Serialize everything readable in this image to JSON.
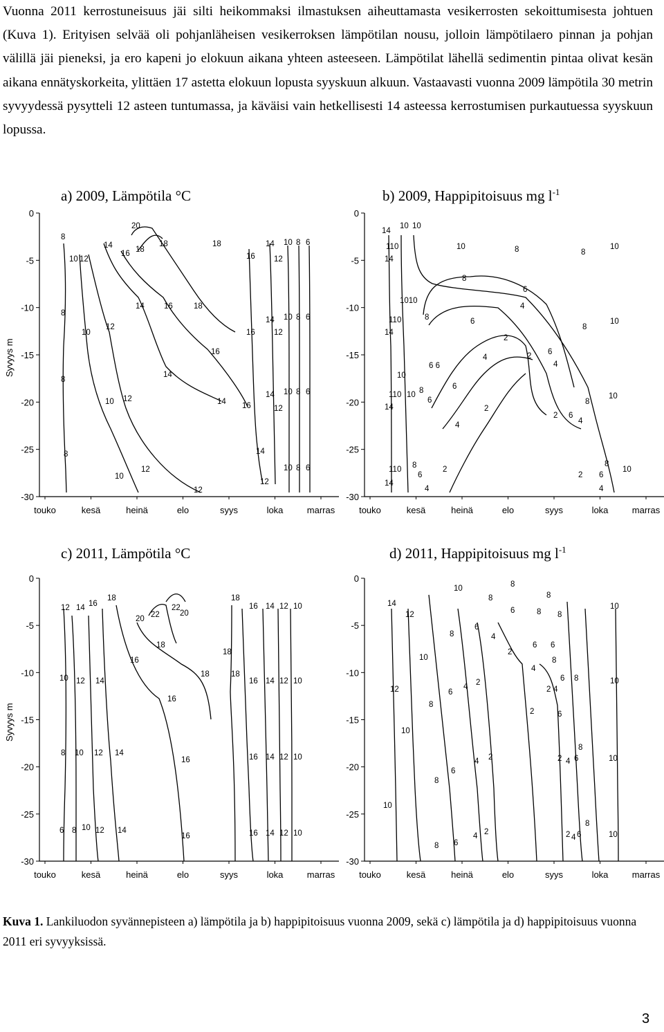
{
  "paragraph": "Vuonna 2011 kerrostuneisuus jäi silti heikommaksi ilmastuksen aiheuttamasta vesikerrosten sekoittumisesta johtuen (Kuva 1). Erityisen selvää oli pohjanläheisen vesikerroksen lämpötilan nousu, jolloin lämpötilaero pinnan ja pohjan välillä jäi pieneksi, ja ero kapeni jo elokuun aikana yhteen asteeseen. Lämpötilat lähellä sedimentin pintaa olivat kesän aikana ennätyskorkeita, ylittäen 17 astetta elokuun lopusta syyskuun alkuun. Vastaavasti vuonna 2009 lämpötila 30 metrin syvyydessä pysytteli 12 asteen tuntumassa, ja käväisi vain hetkellisesti 14 asteessa kerrostumisen purkautuessa syyskuun lopussa.",
  "panels": [
    {
      "title": "a) 2009, Lämpötila °C",
      "sup": ""
    },
    {
      "title": "b) 2009, Happipitoisuus mg l",
      "sup": "-1"
    },
    {
      "title": "c) 2011, Lämpötila °C",
      "sup": ""
    },
    {
      "title": "d) 2011, Happipitoisuus mg l",
      "sup": "-1"
    }
  ],
  "y_axis_label": "Syvyys m",
  "caption_label": "Kuva 1.",
  "caption_text": " Lankiluodon syvännepisteen a) lämpötila ja b) happipitoisuus vuonna 2009, sekä c) lämpötila ja d) happipitoisuus vuonna 2011 eri syvyyksissä.",
  "page_number": "3",
  "chart_data": [
    {
      "type": "contour",
      "title": "a) 2009, Lämpötila °C",
      "ylabel": "Syvyys m",
      "x_categories": [
        "touko",
        "kesä",
        "heinä",
        "elo",
        "syys",
        "loka",
        "marras"
      ],
      "y_ticks": [
        "0",
        "-5",
        "-10",
        "-15",
        "-20",
        "-25",
        "-30"
      ],
      "ylim": [
        -30,
        0
      ],
      "contour_levels": [
        6,
        8,
        10,
        12,
        14,
        16,
        18,
        20
      ]
    },
    {
      "type": "contour",
      "title": "b) 2009, Happipitoisuus mg l-1",
      "ylabel": "",
      "x_categories": [
        "touko",
        "kesä",
        "heinä",
        "elo",
        "syys",
        "loka",
        "marras"
      ],
      "y_ticks": [
        "0",
        "-5",
        "-10",
        "-15",
        "-20",
        "-25",
        "-30"
      ],
      "ylim": [
        -30,
        0
      ],
      "contour_levels": [
        2,
        4,
        6,
        8,
        10,
        14
      ]
    },
    {
      "type": "contour",
      "title": "c) 2011, Lämpötila °C",
      "ylabel": "Syvyys m",
      "x_categories": [
        "touko",
        "kesä",
        "heinä",
        "elo",
        "syys",
        "loka",
        "marras"
      ],
      "y_ticks": [
        "0",
        "-5",
        "-10",
        "-15",
        "-20",
        "-25",
        "-30"
      ],
      "ylim": [
        -30,
        0
      ],
      "contour_levels": [
        6,
        8,
        10,
        12,
        14,
        16,
        18,
        20,
        22
      ]
    },
    {
      "type": "contour",
      "title": "d) 2011, Happipitoisuus mg l-1",
      "ylabel": "",
      "x_categories": [
        "touko",
        "kesä",
        "heinä",
        "elo",
        "syys",
        "loka",
        "marras"
      ],
      "y_ticks": [
        "0",
        "-5",
        "-10",
        "-15",
        "-20",
        "-25",
        "-30"
      ],
      "ylim": [
        -30,
        0
      ],
      "contour_levels": [
        2,
        4,
        6,
        8,
        10,
        12,
        14
      ]
    }
  ]
}
